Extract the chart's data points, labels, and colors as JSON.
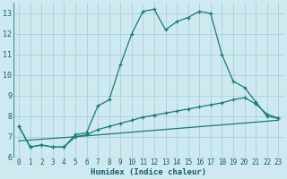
{
  "xlabel": "Humidex (Indice chaleur)",
  "background_color": "#ceeaf0",
  "grid_color": "#aad4dc",
  "line_color": "#1a7a6e",
  "xlim": [
    -0.5,
    23.5
  ],
  "ylim": [
    6,
    13.5
  ],
  "yticks": [
    6,
    7,
    8,
    9,
    10,
    11,
    12,
    13
  ],
  "xticks": [
    0,
    1,
    2,
    3,
    4,
    5,
    6,
    7,
    8,
    9,
    10,
    11,
    12,
    13,
    14,
    15,
    16,
    17,
    18,
    19,
    20,
    21,
    22,
    23
  ],
  "line1_x": [
    0,
    1,
    2,
    3,
    4,
    5,
    6,
    7,
    8,
    9,
    10,
    11,
    12,
    13,
    14,
    15,
    16,
    17,
    18,
    19,
    20,
    21,
    22,
    23
  ],
  "line1_y": [
    7.5,
    6.5,
    6.6,
    6.5,
    6.5,
    7.1,
    7.2,
    8.5,
    8.8,
    10.5,
    12.0,
    13.1,
    13.2,
    12.2,
    12.6,
    12.8,
    13.1,
    13.0,
    11.0,
    9.7,
    9.4,
    8.7,
    8.0,
    7.9
  ],
  "line2_x": [
    0,
    1,
    2,
    3,
    4,
    5,
    6,
    7,
    8,
    9,
    10,
    11,
    12,
    13,
    14,
    15,
    16,
    17,
    18,
    19,
    20,
    21,
    22,
    23
  ],
  "line2_y": [
    7.5,
    6.5,
    6.6,
    6.5,
    6.5,
    7.0,
    7.1,
    7.35,
    7.5,
    7.65,
    7.8,
    7.95,
    8.05,
    8.15,
    8.25,
    8.35,
    8.45,
    8.55,
    8.65,
    8.8,
    8.9,
    8.6,
    8.1,
    7.9
  ],
  "line3_x": [
    0,
    5,
    23
  ],
  "line3_y": [
    6.8,
    7.0,
    7.8
  ],
  "xlabel_color": "#1a5a6e",
  "tick_color": "#1a5a6e"
}
